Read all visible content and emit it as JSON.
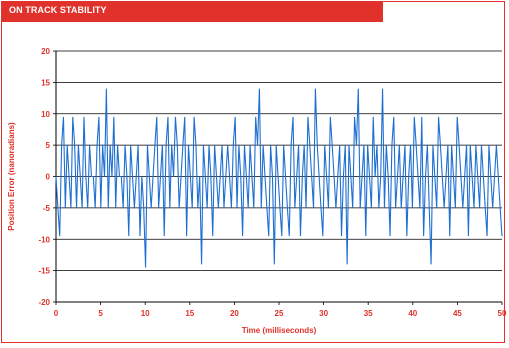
{
  "header": {
    "title": "ON TRACK STABILITY"
  },
  "colors": {
    "accent": "#e0322a",
    "line": "#1f6fd1",
    "grid": "#000000"
  },
  "chart_data": {
    "type": "line",
    "title": "ON TRACK STABILITY",
    "xlabel": "Time (milliseconds)",
    "ylabel": "Position Error (nanoradians)",
    "xlim": [
      0,
      50
    ],
    "ylim": [
      -20,
      20
    ],
    "x_ticks": [
      "0",
      "5",
      "10",
      "15",
      "20",
      "25",
      "30",
      "35",
      "40",
      "45",
      "50"
    ],
    "y_ticks": [
      "20",
      "15",
      "10",
      "5",
      "0",
      "-5",
      "-10",
      "-15",
      "-20"
    ],
    "grid": "horizontal",
    "legend": "none",
    "series": [
      {
        "x_start": 0,
        "x_end": 50,
        "values": [
          0,
          -5,
          -9.5,
          5,
          9.5,
          -5,
          5,
          0,
          -5,
          9.5,
          5,
          -5,
          5,
          0,
          -5,
          9.5,
          0,
          -5,
          5,
          0,
          0,
          -5,
          5,
          9.5,
          -5,
          5,
          0,
          14,
          -5,
          5,
          0,
          9.5,
          -5,
          5,
          0,
          0,
          -5,
          5,
          0,
          -9.5,
          5,
          0,
          -5,
          0,
          5,
          -9.5,
          0,
          -5,
          -14.5,
          5,
          0,
          -5,
          0,
          5,
          9.5,
          -5,
          0,
          5,
          -9.5,
          5,
          9.5,
          -5,
          5,
          0,
          9.5,
          5,
          -5,
          0,
          5,
          9.5,
          -9.5,
          5,
          0,
          -5,
          9.5,
          5,
          -5,
          0,
          -14,
          5,
          0,
          -5,
          5,
          0,
          -9.5,
          5,
          0,
          -5,
          0,
          5,
          -5,
          0,
          5,
          0,
          -5,
          5,
          9.5,
          -5,
          5,
          0,
          -9.5,
          5,
          0,
          -5,
          5,
          0,
          -5,
          9.5,
          5,
          14,
          -5,
          5,
          0,
          -5,
          -9.5,
          5,
          0,
          -14,
          5,
          0,
          -5,
          -9.5,
          5,
          0,
          -5,
          -9.5,
          5,
          9.5,
          -5,
          0,
          5,
          -9.5,
          0,
          5,
          -5,
          9.5,
          5,
          0,
          -5,
          14,
          5,
          0,
          -5,
          -9.5,
          5,
          0,
          -5,
          9.5,
          5,
          0,
          -5,
          0,
          5,
          -9.5,
          0,
          5,
          -14,
          5,
          0,
          -5,
          9.5,
          5,
          14,
          -5,
          0,
          5,
          -9.5,
          5,
          0,
          -5,
          9.5,
          0,
          5,
          -5,
          0,
          14,
          -5,
          5,
          0,
          -9.5,
          5,
          9.5,
          -5,
          0,
          5,
          -5,
          0,
          5,
          -9.5,
          0,
          5,
          -5,
          9.5,
          5,
          0,
          -5,
          9.5,
          -9.5,
          0,
          5,
          -5,
          -14,
          5,
          0,
          -5,
          9.5,
          5,
          0,
          -5,
          0,
          5,
          -9.5,
          5,
          0,
          -5,
          9.5,
          5,
          0,
          -5,
          0,
          5,
          -9.5,
          5,
          0,
          -5,
          5,
          0,
          -5,
          5,
          0,
          -5,
          -9.5,
          5,
          0,
          -5,
          0,
          5,
          0,
          -5,
          -9.5
        ]
      }
    ]
  }
}
